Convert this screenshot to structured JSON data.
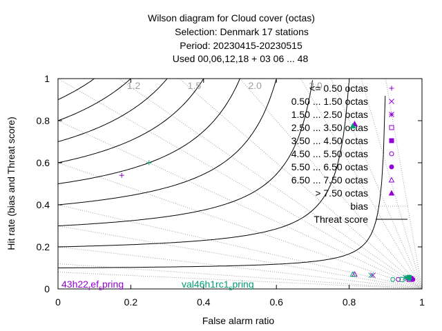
{
  "title": {
    "line1": "Wilson diagram  for Cloud cover (octas)",
    "line2": "Selection: Denmark      17 stations",
    "line3": "Period: 20230415-20230515",
    "line4": "Used  00,06,12,18  + 03 06 ... 48"
  },
  "colors": {
    "purple": "#9400d3",
    "teal": "#009e73",
    "bias_line": "#a0a0a0",
    "threat_line": "#000000"
  },
  "chart_data": {
    "type": "scatter",
    "xlabel": "False alarm ratio",
    "ylabel": "Hit rate (bias and Threat score)",
    "xlim": [
      0,
      1
    ],
    "ylim": [
      0,
      1
    ],
    "x_ticks": [
      "0",
      "0.2",
      "0.4",
      "0.6",
      "0.8",
      "1"
    ],
    "y_ticks": [
      "0",
      "0.2",
      "0.4",
      "0.6",
      "0.8",
      "1"
    ],
    "bias_isolines": [
      1.2,
      1.5,
      2.0,
      3.0
    ],
    "bias_isoline_labels": [
      "1.2",
      "1.5",
      "2.0",
      "3.0"
    ],
    "threat_isolines": [
      0.1,
      0.2,
      0.3,
      0.4,
      0.5,
      0.6,
      0.7,
      0.8,
      0.9
    ],
    "legend": [
      {
        "label": "<= 0.50 octas",
        "marker": "plus"
      },
      {
        "label": "0.50 ... 1.50 octas",
        "marker": "cross"
      },
      {
        "label": "1.50 ... 2.50 octas",
        "marker": "star"
      },
      {
        "label": "2.50 ... 3.50 octas",
        "marker": "square"
      },
      {
        "label": "3.50 ... 4.50 octas",
        "marker": "square-filled"
      },
      {
        "label": "4.50 ... 5.50 octas",
        "marker": "circle"
      },
      {
        "label": "5.50 ... 6.50 octas",
        "marker": "circle-filled"
      },
      {
        "label": "6.50 ... 7.50 octas",
        "marker": "triangle"
      },
      {
        "label": "> 7.50 octas",
        "marker": "triangle-filled"
      },
      {
        "label": "bias",
        "marker": "bias-line"
      },
      {
        "label": "Threat score",
        "marker": "threat-line"
      }
    ],
    "series": [
      {
        "name": "43h22_ref_spring",
        "color": "#9400d3",
        "points": [
          {
            "class": "<= 0.50 octas",
            "far": 0.175,
            "hit": 0.54
          },
          {
            "class": "0.50 ... 1.50 octas",
            "far": 0.865,
            "hit": 0.065
          },
          {
            "class": "1.50 ... 2.50 octas",
            "far": 0.96,
            "hit": 0.05
          },
          {
            "class": "2.50 ... 3.50 octas",
            "far": 0.965,
            "hit": 0.045
          },
          {
            "class": "3.50 ... 4.50 octas",
            "far": 0.97,
            "hit": 0.05
          },
          {
            "class": "4.50 ... 5.50 octas",
            "far": 0.935,
            "hit": 0.045
          },
          {
            "class": "5.50 ... 6.50 octas",
            "far": 0.975,
            "hit": 0.045
          },
          {
            "class": "6.50 ... 7.50 octas",
            "far": 0.815,
            "hit": 0.07
          },
          {
            "class": "> 7.50 octas",
            "far": 0.815,
            "hit": 0.785
          }
        ]
      },
      {
        "name": "val46h1rc1_spring",
        "color": "#009e73",
        "points": [
          {
            "class": "<= 0.50 octas",
            "far": 0.25,
            "hit": 0.6
          },
          {
            "class": "0.50 ... 1.50 octas",
            "far": 0.86,
            "hit": 0.065
          },
          {
            "class": "1.50 ... 2.50 octas",
            "far": 0.955,
            "hit": 0.055
          },
          {
            "class": "2.50 ... 3.50 octas",
            "far": 0.945,
            "hit": 0.045
          },
          {
            "class": "3.50 ... 4.50 octas",
            "far": 0.965,
            "hit": 0.055
          },
          {
            "class": "4.50 ... 5.50 octas",
            "far": 0.92,
            "hit": 0.045
          },
          {
            "class": "5.50 ... 6.50 octas",
            "far": 0.965,
            "hit": 0.05
          },
          {
            "class": "6.50 ... 7.50 octas",
            "far": 0.81,
            "hit": 0.07
          },
          {
            "class": "> 7.50 octas",
            "far": 0.81,
            "hit": 0.775
          }
        ]
      }
    ],
    "model_labels": [
      {
        "text_parts": [
          "43h22",
          "_r",
          "ef",
          "_s",
          "pring"
        ]
      },
      {
        "text_parts": [
          "val46h1rc1",
          "_s",
          "pring"
        ]
      }
    ]
  }
}
